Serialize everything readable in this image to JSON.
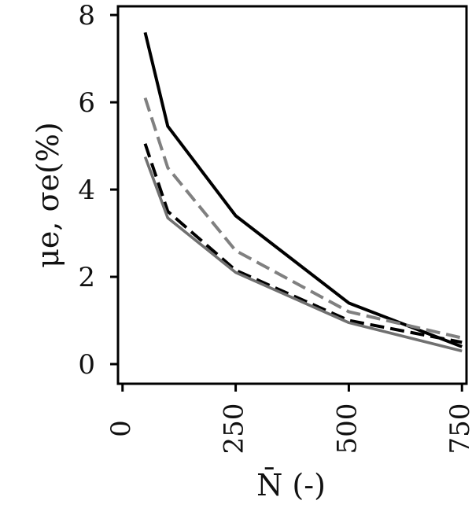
{
  "chart_data": {
    "type": "line",
    "title": "",
    "xlabel": "N̄ (-)",
    "ylabel": "μe, σe(%)",
    "xlim": [
      -10,
      760
    ],
    "ylim": [
      -0.45,
      8.2
    ],
    "x_ticks": [
      0,
      250,
      500,
      750
    ],
    "y_ticks": [
      0,
      2,
      4,
      6,
      8
    ],
    "grid": false,
    "legend": "none",
    "x": [
      50,
      100,
      250,
      500,
      750
    ],
    "series": [
      {
        "values": [
          7.6,
          5.45,
          3.4,
          1.4,
          0.4
        ],
        "color": "#000000",
        "dash": "solid"
      },
      {
        "values": [
          6.1,
          4.5,
          2.6,
          1.2,
          0.6
        ],
        "color": "#808080",
        "dash": "dashed"
      },
      {
        "values": [
          5.05,
          3.5,
          2.15,
          1.0,
          0.5
        ],
        "color": "#000000",
        "dash": "dashed"
      },
      {
        "values": [
          4.75,
          3.35,
          2.1,
          0.95,
          0.3
        ],
        "color": "#707070",
        "dash": "solid"
      }
    ]
  }
}
